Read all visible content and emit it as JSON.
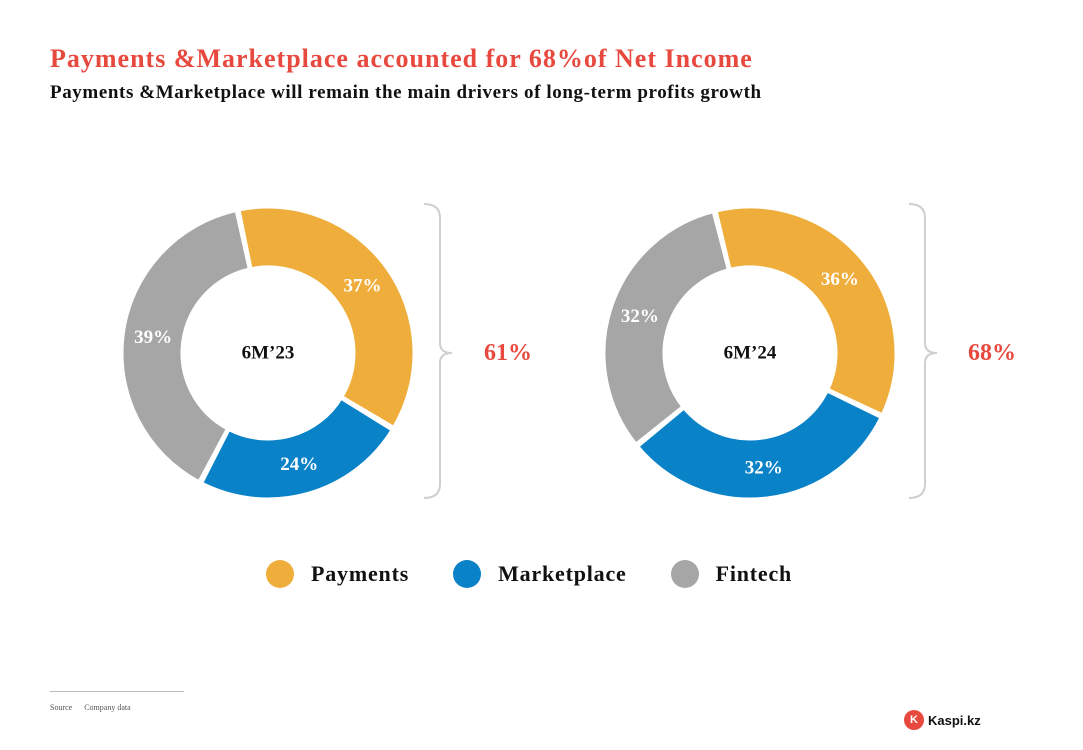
{
  "header": {
    "title": "Payments &Marketplace accounted for 68%of Net Income",
    "subtitle": "Payments &Marketplace will remain the main drivers of long-term profits growth"
  },
  "colors": {
    "payments": "#efad3c",
    "marketplace": "#0a82c8",
    "fintech": "#a6a6a6",
    "accent": "#e8493f"
  },
  "chart_data": [
    {
      "type": "donut",
      "center_label": "6M’23",
      "categories": [
        "Payments",
        "Marketplace",
        "Fintech"
      ],
      "values": [
        37,
        24,
        39
      ],
      "value_labels": [
        "37%",
        "24%",
        "39%"
      ],
      "bracket_label": "61%"
    },
    {
      "type": "donut",
      "center_label": "6M’24",
      "categories": [
        "Payments",
        "Marketplace",
        "Fintech"
      ],
      "values": [
        36,
        32,
        32
      ],
      "value_labels": [
        "36%",
        "32%",
        "32%"
      ],
      "bracket_label": "68%"
    }
  ],
  "legend": {
    "items": [
      {
        "label": "Payments",
        "color": "#efad3c"
      },
      {
        "label": "Marketplace",
        "color": "#0a82c8"
      },
      {
        "label": "Fintech",
        "color": "#a6a6a6"
      }
    ]
  },
  "footer": {
    "source_label": "Source",
    "source_value": "Company data",
    "logo_text": "Kaspi.kz"
  }
}
